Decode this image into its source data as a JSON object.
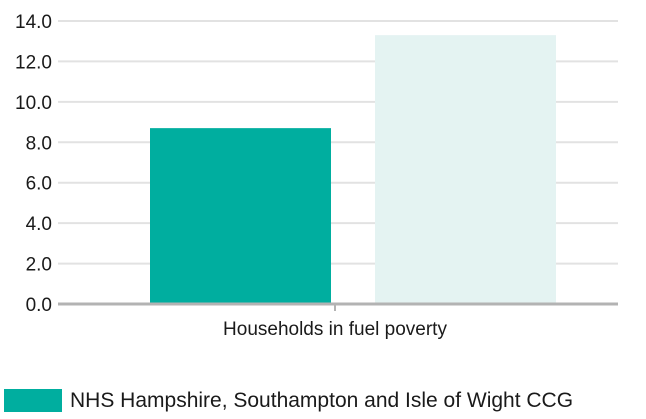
{
  "chart_data": {
    "type": "bar",
    "categories": [
      "Households in fuel poverty"
    ],
    "series": [
      {
        "name": "NHS Hampshire, Southampton and Isle of Wight CCG",
        "values": [
          8.7
        ],
        "color": "#00ae9f"
      },
      {
        "values": [
          13.3
        ],
        "color": "#e4f3f2"
      }
    ],
    "ylim": [
      0,
      14
    ],
    "yticks": [
      "0.0",
      "2.0",
      "4.0",
      "6.0",
      "8.0",
      "10.0",
      "12.0",
      "14.0"
    ],
    "grid": true,
    "legend": "bottom-left",
    "gridColor": "#e2e2e2",
    "axisColor": "#b3b3b3"
  },
  "legend": {
    "label": "NHS Hampshire, Southampton and Isle of Wight CCG",
    "color": "#00ae9f"
  }
}
